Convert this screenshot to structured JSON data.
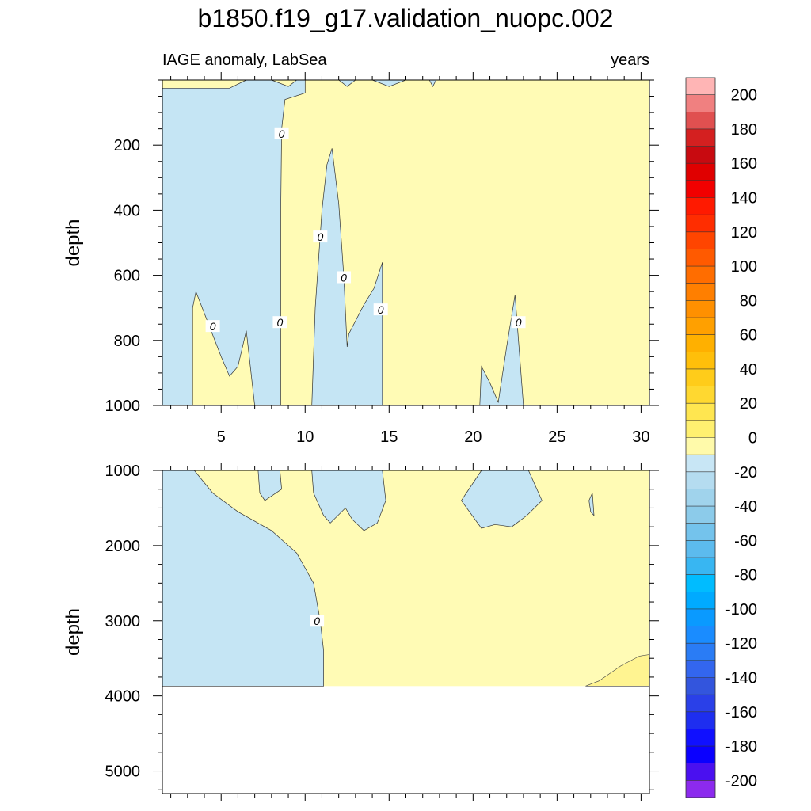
{
  "chart_data": {
    "type": "contour",
    "title": "b1850.f19_g17.validation_nuopc.002",
    "subtitle_left": "IAGE anomaly, LabSea",
    "subtitle_right": "years",
    "xlabel": "",
    "ylabel": "depth",
    "x_ticks": [
      "5",
      "10",
      "15",
      "20",
      "25",
      "30"
    ],
    "x_tick_values": [
      5,
      10,
      15,
      20,
      25,
      30
    ],
    "xlim": [
      1.5,
      30.5
    ],
    "panels": [
      {
        "name": "upper",
        "ylim": [
          0,
          1000
        ],
        "y_ticks": [
          "200",
          "400",
          "600",
          "800",
          "1000"
        ],
        "y_tick_values": [
          200,
          400,
          600,
          800,
          1000
        ],
        "contour_labels": [
          {
            "text": "0",
            "x": 8.6,
            "y": 165
          },
          {
            "text": "0",
            "x": 10.9,
            "y": 482
          },
          {
            "text": "0",
            "x": 12.3,
            "y": 607
          },
          {
            "text": "0",
            "x": 14.5,
            "y": 706
          },
          {
            "text": "0",
            "x": 4.5,
            "y": 757
          },
          {
            "text": "0",
            "x": 8.5,
            "y": 745
          },
          {
            "text": "0",
            "x": 22.7,
            "y": 745
          }
        ],
        "negative_regions": [
          [
            [
              1.5,
              25
            ],
            [
              5.5,
              25
            ],
            [
              6.5,
              0
            ],
            [
              8,
              0
            ],
            [
              9,
              20
            ],
            [
              9.5,
              0
            ],
            [
              10,
              0
            ],
            [
              10,
              40
            ],
            [
              8.8,
              60
            ],
            [
              8.6,
              150
            ],
            [
              8.55,
              400
            ],
            [
              8.55,
              1000
            ],
            [
              7,
              1000
            ],
            [
              6.5,
              770
            ],
            [
              6,
              880
            ],
            [
              5.5,
              910
            ],
            [
              5,
              850
            ],
            [
              3.5,
              650
            ],
            [
              3.3,
              700
            ],
            [
              3.3,
              1000
            ],
            [
              1.5,
              1000
            ]
          ],
          [
            [
              10.4,
              1000
            ],
            [
              10.6,
              700
            ],
            [
              11,
              400
            ],
            [
              11.3,
              260
            ],
            [
              11.6,
              210
            ],
            [
              12,
              380
            ],
            [
              12.3,
              600
            ],
            [
              12.5,
              820
            ],
            [
              12.6,
              780
            ],
            [
              13.5,
              690
            ],
            [
              14.1,
              640
            ],
            [
              14.6,
              560
            ],
            [
              14.6,
              1000
            ]
          ],
          [
            [
              20.4,
              1000
            ],
            [
              20.5,
              880
            ],
            [
              21,
              930
            ],
            [
              21.5,
              990
            ],
            [
              22,
              820
            ],
            [
              22.5,
              660
            ],
            [
              23,
              1000
            ]
          ],
          [
            [
              12,
              0
            ],
            [
              12.5,
              20
            ],
            [
              13,
              0
            ]
          ],
          [
            [
              14,
              0
            ],
            [
              15,
              20
            ],
            [
              16,
              0
            ]
          ],
          [
            [
              17.4,
              0
            ],
            [
              17.6,
              20
            ],
            [
              17.8,
              0
            ]
          ]
        ],
        "strong_positive_regions": []
      },
      {
        "name": "lower",
        "ylim": [
          1000,
          5300
        ],
        "y_ticks": [
          "1000",
          "2000",
          "3000",
          "4000",
          "5000"
        ],
        "y_tick_values": [
          1000,
          2000,
          3000,
          4000,
          5000
        ],
        "data_bottom": 3870,
        "contour_labels": [
          {
            "text": "0",
            "x": 10.7,
            "y": 3005
          }
        ],
        "negative_regions": [
          [
            [
              1.5,
              1000
            ],
            [
              3.4,
              1000
            ],
            [
              4.5,
              1300
            ],
            [
              6,
              1550
            ],
            [
              8,
              1800
            ],
            [
              9.5,
              2100
            ],
            [
              10.5,
              2500
            ],
            [
              10.9,
              3000
            ],
            [
              11.1,
              3400
            ],
            [
              11.1,
              3870
            ],
            [
              1.5,
              3870
            ]
          ],
          [
            [
              7.2,
              1000
            ],
            [
              8.5,
              1000
            ],
            [
              8.6,
              1250
            ],
            [
              7.6,
              1400
            ],
            [
              7.3,
              1300
            ]
          ],
          [
            [
              10.4,
              1000
            ],
            [
              14.6,
              1000
            ],
            [
              14.8,
              1400
            ],
            [
              14.3,
              1700
            ],
            [
              13.5,
              1800
            ],
            [
              12.8,
              1650
            ],
            [
              12.4,
              1500
            ],
            [
              11.5,
              1700
            ],
            [
              11.1,
              1600
            ],
            [
              10.5,
              1300
            ]
          ],
          [
            [
              20.5,
              1000
            ],
            [
              23.3,
              1000
            ],
            [
              24.1,
              1400
            ],
            [
              23.2,
              1600
            ],
            [
              22.3,
              1750
            ],
            [
              21.3,
              1720
            ],
            [
              20.5,
              1770
            ],
            [
              19.3,
              1400
            ]
          ],
          [
            [
              26.9,
              1400
            ],
            [
              27.1,
              1300
            ],
            [
              27.2,
              1600
            ],
            [
              27,
              1550
            ]
          ]
        ],
        "strong_positive_regions": [
          [
            [
              26.7,
              3870
            ],
            [
              27.5,
              3800
            ],
            [
              28.8,
              3600
            ],
            [
              29.9,
              3470
            ],
            [
              30.5,
              3450
            ],
            [
              30.5,
              3870
            ]
          ]
        ]
      }
    ],
    "colorbar": {
      "levels": [
        "200",
        "180",
        "160",
        "140",
        "120",
        "100",
        "80",
        "60",
        "40",
        "20",
        "0",
        "-20",
        "-40",
        "-60",
        "-80",
        "-100",
        "-120",
        "-140",
        "-160",
        "-180",
        "-200"
      ],
      "colors": [
        "#ffb5b5",
        "#f08080",
        "#e05050",
        "#d42020",
        "#c80a10",
        "#e00000",
        "#f20000",
        "#ff1a00",
        "#ff2d00",
        "#ff4500",
        "#ff5a00",
        "#ff6d00",
        "#ff7f00",
        "#ff9000",
        "#ffa000",
        "#ffb000",
        "#ffbf0a",
        "#ffcc1a",
        "#ffd830",
        "#ffe650",
        "#fff070",
        "#fffaaa",
        "#c8e6f5",
        "#b5dcf0",
        "#a0d3ec",
        "#8ccbea",
        "#74c3ec",
        "#5cbbee",
        "#38b6f2",
        "#00bcff",
        "#00aaff",
        "#0a9aff",
        "#1a8cff",
        "#2a7cf5",
        "#3366ee",
        "#3355dd",
        "#2a40e8",
        "#1e2ef0",
        "#1010ff",
        "#0a00ff",
        "#4a10f0",
        "#8c2aee"
      ]
    },
    "fill_colors": {
      "negative": "#c5e5f4",
      "positive": "#fffbb5",
      "strong_positive": "#fff491"
    }
  }
}
